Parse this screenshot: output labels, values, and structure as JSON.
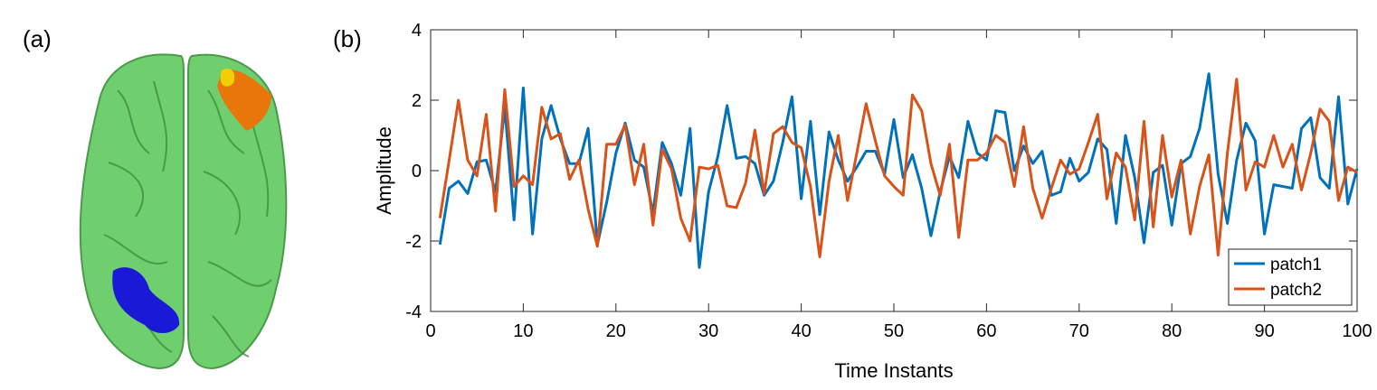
{
  "panel_labels": {
    "a": "(a)",
    "b": "(b)"
  },
  "chart_data": {
    "type": "line",
    "xlabel": "Time Instants",
    "ylabel": "Amplitude",
    "x": [
      1,
      2,
      3,
      4,
      5,
      6,
      7,
      8,
      9,
      10,
      11,
      12,
      13,
      14,
      15,
      16,
      17,
      18,
      19,
      20,
      21,
      22,
      23,
      24,
      25,
      26,
      27,
      28,
      29,
      30,
      31,
      32,
      33,
      34,
      35,
      36,
      37,
      38,
      39,
      40,
      41,
      42,
      43,
      44,
      45,
      46,
      47,
      48,
      49,
      50,
      51,
      52,
      53,
      54,
      55,
      56,
      57,
      58,
      59,
      60,
      61,
      62,
      63,
      64,
      65,
      66,
      67,
      68,
      69,
      70,
      71,
      72,
      73,
      74,
      75,
      76,
      77,
      78,
      79,
      80,
      81,
      82,
      83,
      84,
      85,
      86,
      87,
      88,
      89,
      90,
      91,
      92,
      93,
      94,
      95,
      96,
      97,
      98,
      99,
      100
    ],
    "series": [
      {
        "name": "patch1",
        "color": "#0072bd",
        "values": [
          -2.1,
          -0.5,
          -0.3,
          -0.65,
          0.25,
          0.3,
          -0.6,
          1.8,
          -1.4,
          2.35,
          -1.8,
          0.9,
          1.85,
          0.9,
          0.2,
          0.2,
          1.2,
          -2.1,
          -0.9,
          0.5,
          1.35,
          0.3,
          0.1,
          -1.2,
          0.8,
          0.2,
          -0.7,
          1.2,
          -2.75,
          -0.6,
          0.4,
          1.85,
          0.35,
          0.4,
          0.2,
          -0.7,
          -0.3,
          0.8,
          2.1,
          -0.8,
          1.4,
          -1.25,
          1.1,
          0.3,
          -0.3,
          0.1,
          0.55,
          0.55,
          -0.1,
          1.45,
          -0.2,
          0.45,
          -0.5,
          -1.85,
          -0.6,
          0.4,
          -0.2,
          1.4,
          0.5,
          0.3,
          1.7,
          1.65,
          0,
          0.7,
          0.2,
          0.55,
          -0.7,
          -0.6,
          0.35,
          -0.3,
          -0.05,
          0.9,
          0.6,
          -1.5,
          1.0,
          -0.2,
          -2.05,
          -0.05,
          0.15,
          -1.55,
          0.2,
          0.4,
          1.2,
          2.75,
          -0.1,
          -1.5,
          0.3,
          1.35,
          0.85,
          -1.8,
          -0.4,
          -0.45,
          -0.5,
          1.2,
          1.5,
          -0.2,
          -0.5,
          2.1,
          -0.95,
          0.05
        ]
      },
      {
        "name": "patch2",
        "color": "#d95319",
        "values": [
          -1.35,
          0.3,
          2.0,
          0.3,
          -0.15,
          1.6,
          -1.15,
          2.3,
          -0.45,
          -0.15,
          -0.4,
          1.8,
          0.9,
          1.05,
          -0.25,
          0.3,
          -1.1,
          -2.15,
          0.75,
          0.75,
          1.3,
          -0.4,
          0.75,
          -1.55,
          0.6,
          0.05,
          -1.35,
          -2.0,
          0.1,
          0.05,
          0.15,
          -1.0,
          -1.05,
          -0.35,
          1.15,
          -0.65,
          1.05,
          1.25,
          0.8,
          0.65,
          -0.45,
          -2.45,
          -0.3,
          1.0,
          -0.85,
          0.5,
          1.9,
          0.85,
          -0.15,
          -0.45,
          -0.7,
          2.15,
          1.7,
          0.2,
          -0.7,
          0.75,
          -1.9,
          0.3,
          0.3,
          0.5,
          1.0,
          0.8,
          -0.45,
          1.25,
          -0.5,
          -1.35,
          -0.5,
          0.3,
          -0.1,
          0.05,
          0.8,
          1.6,
          -0.8,
          0.5,
          0.1,
          -1.4,
          1.4,
          -1.6,
          1.0,
          -0.75,
          0.3,
          -1.8,
          -0.45,
          0.45,
          -2.4,
          0.5,
          2.6,
          -0.55,
          0.25,
          0.1,
          1.0,
          0.1,
          0.75,
          -0.55,
          0.5,
          1.75,
          1.4,
          -0.85,
          0.1,
          -0.05
        ]
      }
    ],
    "xlim": [
      0,
      100
    ],
    "xticks": [
      0,
      10,
      20,
      30,
      40,
      50,
      60,
      70,
      80,
      90,
      100
    ],
    "ylim": [
      -4,
      4
    ],
    "yticks": [
      -4,
      -2,
      0,
      2,
      4
    ],
    "legend": "lower right",
    "grid": false
  }
}
